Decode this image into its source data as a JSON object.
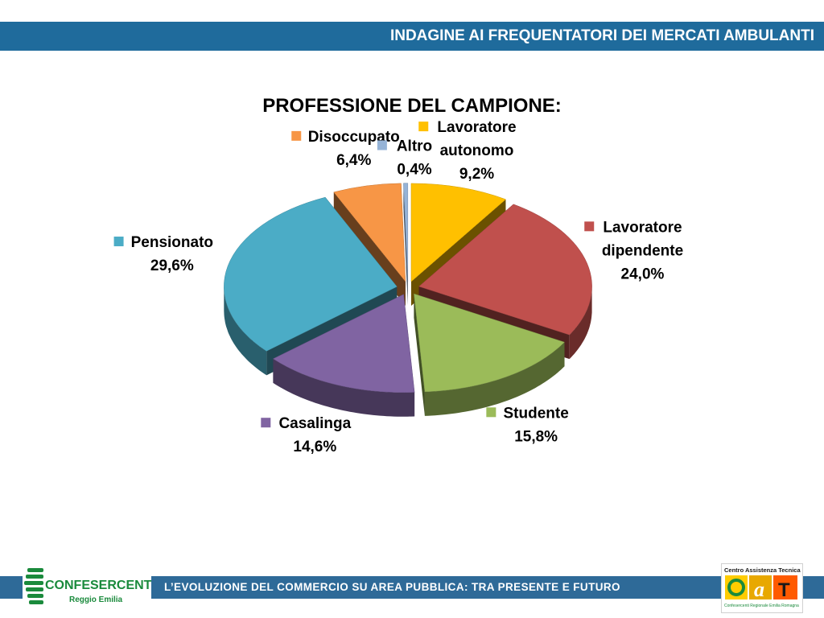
{
  "header": {
    "title": "INDAGINE AI FREQUENTATORI DEI MERCATI AMBULANTI"
  },
  "footer": {
    "subtitle": "L’EVOLUZIONE DEL COMMERCIO SU AREA PUBBLICA: TRA PRESENTE E FUTURO",
    "left_logo": {
      "line1": "CONFESERCENTI",
      "line2": "Reggio Emilia"
    },
    "right_logo": {
      "line1": "Centro Assistenza Tecnica",
      "letters": "CaT",
      "line2": "Confesercenti Regionale Emilia Romagna"
    }
  },
  "colors": {
    "header_band": "#1f6b9c",
    "footer_band": "#2e6a98",
    "brand_green": "#1a8a3c"
  },
  "chart_data": {
    "type": "pie",
    "title": "PROFESSIONE DEL CAMPIONE:",
    "slices": [
      {
        "label": "Lavoratore autonomo",
        "value": 9.2,
        "display": "9,2%",
        "color": "#ffc000"
      },
      {
        "label": "Lavoratore dipendente",
        "value": 24.0,
        "display": "24,0%",
        "color": "#c0504d"
      },
      {
        "label": "Studente",
        "value": 15.8,
        "display": "15,8%",
        "color": "#9bbb59"
      },
      {
        "label": "Casalinga",
        "value": 14.6,
        "display": "14,6%",
        "color": "#8064a2"
      },
      {
        "label": "Pensionato",
        "value": 29.6,
        "display": "29,6%",
        "color": "#4bacc6"
      },
      {
        "label": "Disoccupato",
        "value": 6.4,
        "display": "6,4%",
        "color": "#f79646"
      },
      {
        "label": "Altro",
        "value": 0.4,
        "display": "0,4%",
        "color": "#95b3d7"
      }
    ],
    "style": "3d-exploded"
  }
}
